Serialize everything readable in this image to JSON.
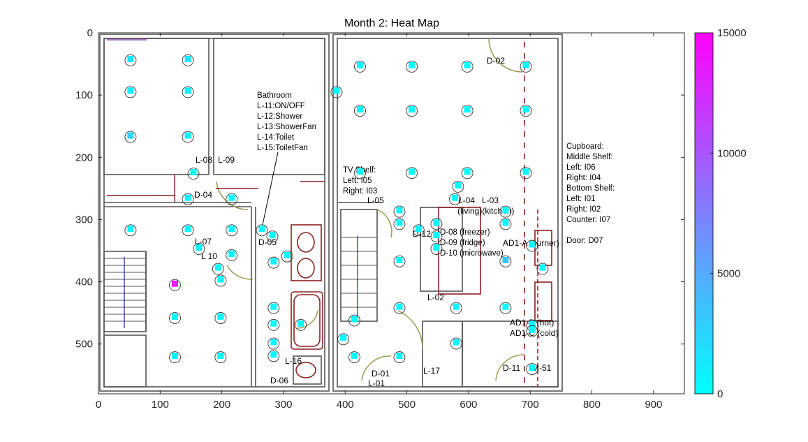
{
  "chart_data": {
    "type": "heatmap",
    "title": "Month 2: Heat Map",
    "xlim": [
      0,
      950
    ],
    "ylim": [
      0,
      580
    ],
    "y_reversed": true,
    "x_ticks": [
      0,
      100,
      200,
      300,
      400,
      500,
      600,
      700,
      800,
      900
    ],
    "y_ticks": [
      0,
      100,
      200,
      300,
      400,
      500
    ],
    "colorbar": {
      "min": 0,
      "max": 15000,
      "ticks": [
        0,
        5000,
        10000,
        15000
      ],
      "low_color": "#00ffff",
      "high_color": "#ff00ff"
    },
    "points": [
      {
        "x": 52,
        "y": 42,
        "v": 1500
      },
      {
        "x": 145,
        "y": 42,
        "v": 1500
      },
      {
        "x": 52,
        "y": 93,
        "v": 800
      },
      {
        "x": 145,
        "y": 93,
        "v": 800
      },
      {
        "x": 52,
        "y": 165,
        "v": 2500
      },
      {
        "x": 145,
        "y": 165,
        "v": 800
      },
      {
        "x": 154,
        "y": 224,
        "v": 200
      },
      {
        "x": 145,
        "y": 265,
        "v": 800
      },
      {
        "x": 216,
        "y": 265,
        "v": 100
      },
      {
        "x": 52,
        "y": 315,
        "v": 100
      },
      {
        "x": 145,
        "y": 315,
        "v": 100
      },
      {
        "x": 216,
        "y": 315,
        "v": 100
      },
      {
        "x": 163,
        "y": 345,
        "v": 100
      },
      {
        "x": 216,
        "y": 355,
        "v": 100
      },
      {
        "x": 194,
        "y": 377,
        "v": 100
      },
      {
        "x": 198,
        "y": 396,
        "v": 100
      },
      {
        "x": 124,
        "y": 403,
        "v": 13500
      },
      {
        "x": 124,
        "y": 456,
        "v": 100
      },
      {
        "x": 198,
        "y": 456,
        "v": 100
      },
      {
        "x": 124,
        "y": 519,
        "v": 100
      },
      {
        "x": 198,
        "y": 519,
        "v": 100
      },
      {
        "x": 265,
        "y": 315,
        "v": 100
      },
      {
        "x": 282,
        "y": 325,
        "v": 100
      },
      {
        "x": 306,
        "y": 357,
        "v": 100
      },
      {
        "x": 284,
        "y": 367,
        "v": 100
      },
      {
        "x": 284,
        "y": 440,
        "v": 100
      },
      {
        "x": 284,
        "y": 467,
        "v": 100
      },
      {
        "x": 328,
        "y": 467,
        "v": 100
      },
      {
        "x": 284,
        "y": 497,
        "v": 100
      },
      {
        "x": 284,
        "y": 517,
        "v": 100
      },
      {
        "x": 386,
        "y": 93,
        "v": 100
      },
      {
        "x": 424,
        "y": 52,
        "v": 100
      },
      {
        "x": 508,
        "y": 52,
        "v": 100
      },
      {
        "x": 598,
        "y": 52,
        "v": 100
      },
      {
        "x": 693,
        "y": 52,
        "v": 100
      },
      {
        "x": 424,
        "y": 123,
        "v": 100
      },
      {
        "x": 508,
        "y": 123,
        "v": 100
      },
      {
        "x": 598,
        "y": 123,
        "v": 100
      },
      {
        "x": 693,
        "y": 123,
        "v": 100
      },
      {
        "x": 424,
        "y": 223,
        "v": 100
      },
      {
        "x": 508,
        "y": 223,
        "v": 100
      },
      {
        "x": 598,
        "y": 223,
        "v": 100
      },
      {
        "x": 693,
        "y": 223,
        "v": 100
      },
      {
        "x": 583,
        "y": 245,
        "v": 100
      },
      {
        "x": 488,
        "y": 285,
        "v": 100
      },
      {
        "x": 578,
        "y": 265,
        "v": 100
      },
      {
        "x": 660,
        "y": 285,
        "v": 100
      },
      {
        "x": 488,
        "y": 305,
        "v": 100
      },
      {
        "x": 660,
        "y": 305,
        "v": 100
      },
      {
        "x": 519,
        "y": 315,
        "v": 100
      },
      {
        "x": 548,
        "y": 305,
        "v": 100
      },
      {
        "x": 548,
        "y": 325,
        "v": 100
      },
      {
        "x": 548,
        "y": 345,
        "v": 100
      },
      {
        "x": 488,
        "y": 365,
        "v": 100
      },
      {
        "x": 660,
        "y": 365,
        "v": 3500
      },
      {
        "x": 703,
        "y": 340,
        "v": 100
      },
      {
        "x": 720,
        "y": 377,
        "v": 100
      },
      {
        "x": 488,
        "y": 440,
        "v": 100
      },
      {
        "x": 580,
        "y": 440,
        "v": 100
      },
      {
        "x": 660,
        "y": 440,
        "v": 100
      },
      {
        "x": 415,
        "y": 460,
        "v": 100
      },
      {
        "x": 397,
        "y": 490,
        "v": 100
      },
      {
        "x": 703,
        "y": 468,
        "v": 100
      },
      {
        "x": 703,
        "y": 477,
        "v": 100
      },
      {
        "x": 580,
        "y": 497,
        "v": 100
      },
      {
        "x": 415,
        "y": 519,
        "v": 100
      },
      {
        "x": 488,
        "y": 519,
        "v": 100
      },
      {
        "x": 703,
        "y": 538,
        "v": 100
      }
    ],
    "annotations": {
      "bathroom": [
        "Bathroom",
        "L-11:ON/OFF",
        "L-12:Shower",
        "L-13:ShowerFan",
        "L-14:Toilet",
        "L-15:ToiletFan"
      ],
      "tv_shelf": [
        "TV Shelf:",
        "Left: I05",
        "Right: I03"
      ],
      "cupboard": [
        "Cupboard:",
        "Middle Shelf:",
        "Left: I06",
        "Right: I04",
        "Bottom Shelf:",
        "Left: I01",
        "Right: I02",
        "Counter: I07",
        "",
        "Door: D07"
      ],
      "appliances": [
        "D-08 (freezer)",
        "D-09 (fridge)",
        "D-10 (microwave)"
      ],
      "room_labels": {
        "l03": "L-03",
        "l04": "L-04",
        "living_kitchen": "(living)(kitchen)",
        "l05": "L-05",
        "l02": "L-02",
        "l07": "L-07",
        "l09": "L-09",
        "l10": "L 10",
        "l16": "L-16",
        "l17": "L-17",
        "l01": "L-01",
        "d01": "D-01",
        "d02": "D-02",
        "d05": "D-05",
        "d06": "D-06",
        "d11": "D-11",
        "m51": "M-51",
        "d12": "D-12",
        "d04": "D-04",
        "l08": "L-08",
        "ad1a": "AD1-A (burner)",
        "ad1b": "AD1-B (hot)",
        "ad1c": "AD1-C (cold)"
      }
    }
  }
}
